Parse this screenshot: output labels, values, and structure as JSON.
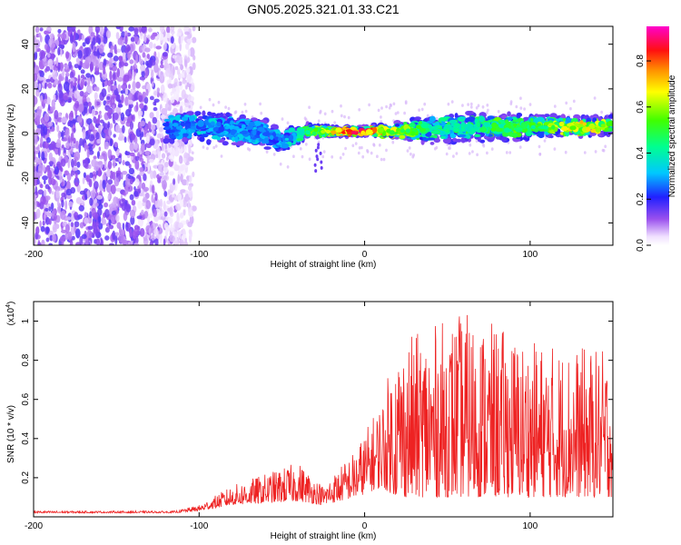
{
  "title": "GN05.2025.321.01.33.C21",
  "chart_data": [
    {
      "type": "heatmap",
      "name": "spectrogram",
      "xlabel": "Height of straight line (km)",
      "ylabel": "Frequency (Hz)",
      "xlim": [
        -200,
        150
      ],
      "ylim": [
        -50,
        48
      ],
      "xticks": [
        -200,
        -100,
        0,
        100
      ],
      "yticks": [
        -40,
        -20,
        0,
        20,
        40
      ],
      "colorbar": {
        "label": "Normalized spectral amplitude",
        "range": [
          0,
          0.95
        ],
        "ticks": [
          "0.0",
          "0.2",
          "0.4",
          "0.6",
          "0.8"
        ],
        "tick_values": [
          0,
          0.2,
          0.4,
          0.6,
          0.8
        ]
      },
      "noise_region_x": [
        -200,
        -115
      ],
      "signal_band": [
        {
          "x": -120,
          "center": 3,
          "halfwidth": 6,
          "peak": 0.28
        },
        {
          "x": -100,
          "center": 3,
          "halfwidth": 6,
          "peak": 0.32
        },
        {
          "x": -80,
          "center": 2,
          "halfwidth": 6,
          "peak": 0.3
        },
        {
          "x": -60,
          "center": 0,
          "halfwidth": 6,
          "peak": 0.3
        },
        {
          "x": -50,
          "center": -3,
          "halfwidth": 5,
          "peak": 0.28
        },
        {
          "x": -35,
          "center": 1,
          "halfwidth": 3,
          "peak": 0.5
        },
        {
          "x": -20,
          "center": 1,
          "halfwidth": 2,
          "peak": 0.75
        },
        {
          "x": 0,
          "center": 1,
          "halfwidth": 2,
          "peak": 0.9
        },
        {
          "x": 15,
          "center": 1,
          "halfwidth": 3,
          "peak": 0.7
        },
        {
          "x": 40,
          "center": 2,
          "halfwidth": 6,
          "peak": 0.45
        },
        {
          "x": 70,
          "center": 3,
          "halfwidth": 6,
          "peak": 0.5
        },
        {
          "x": 100,
          "center": 3,
          "halfwidth": 5,
          "peak": 0.55
        },
        {
          "x": 130,
          "center": 3,
          "halfwidth": 4,
          "peak": 0.7
        },
        {
          "x": 150,
          "center": 4,
          "halfwidth": 4,
          "peak": 0.6
        }
      ]
    },
    {
      "type": "line",
      "name": "snr",
      "xlabel": "Height of straight line (km)",
      "ylabel": "SNR (10 * v/v)",
      "multiplier_label": "(x10",
      "multiplier_exp": "4",
      "multiplier_close": ")",
      "xlim": [
        -200,
        150
      ],
      "ylim": [
        0,
        1.1
      ],
      "xticks": [
        -200,
        -100,
        0,
        100
      ],
      "yticks": [
        0.2,
        0.4,
        0.6,
        0.8,
        1
      ],
      "color": "#ee2222",
      "envelope": [
        {
          "x": -200,
          "base": 0.02,
          "amp": 0.01
        },
        {
          "x": -115,
          "base": 0.02,
          "amp": 0.01
        },
        {
          "x": -100,
          "base": 0.03,
          "amp": 0.03
        },
        {
          "x": -80,
          "base": 0.06,
          "amp": 0.1
        },
        {
          "x": -40,
          "base": 0.08,
          "amp": 0.2
        },
        {
          "x": -25,
          "base": 0.06,
          "amp": 0.1
        },
        {
          "x": -5,
          "base": 0.1,
          "amp": 0.25
        },
        {
          "x": 10,
          "base": 0.15,
          "amp": 0.45
        },
        {
          "x": 20,
          "base": 0.1,
          "amp": 0.8
        },
        {
          "x": 60,
          "base": 0.1,
          "amp": 0.95
        },
        {
          "x": 100,
          "base": 0.1,
          "amp": 0.8
        },
        {
          "x": 150,
          "base": 0.1,
          "amp": 0.75
        }
      ]
    }
  ]
}
